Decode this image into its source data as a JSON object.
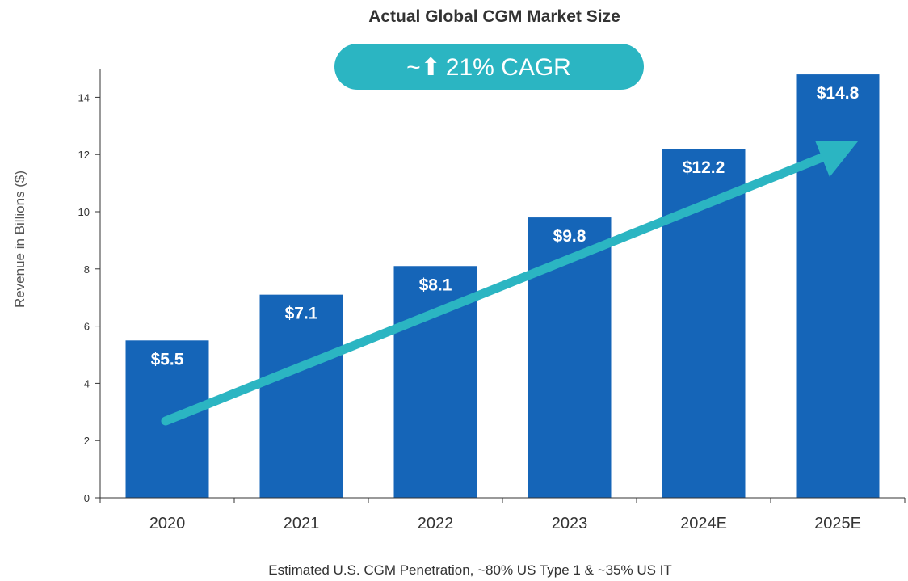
{
  "chart_data": {
    "type": "bar",
    "title": "Actual Global CGM Market Size",
    "ylabel": "Revenue in Billions ($)",
    "xlabel": "",
    "categories": [
      "2020",
      "2021",
      "2022",
      "2023",
      "2024E",
      "2025E"
    ],
    "values": [
      5.5,
      7.1,
      8.1,
      9.8,
      12.2,
      14.8
    ],
    "data_labels": [
      "$5.5",
      "$7.1",
      "$8.1",
      "$9.8",
      "$12.2",
      "$14.8"
    ],
    "ylim": [
      0,
      15
    ],
    "yticks": [
      0,
      2,
      4,
      6,
      8,
      10,
      12,
      14
    ],
    "grid": false,
    "legend": "none",
    "annotations": {
      "cagr_prefix": "~",
      "cagr_text": "21% CAGR",
      "arrow": "trend-up"
    },
    "footnote": "Estimated U.S. CGM Penetration, ~80% US Type 1 & ~35% US IT",
    "colors": {
      "bar": "#1565b8",
      "accent": "#2bb5c2",
      "axis": "#333333"
    }
  }
}
